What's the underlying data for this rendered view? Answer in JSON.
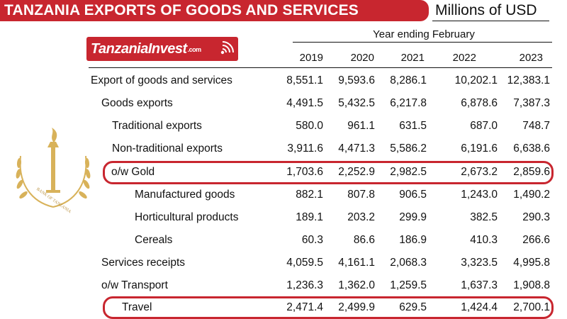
{
  "header": {
    "title": "TANZANIA EXPORTS OF GOODS AND SERVICES",
    "units": "Millions of USD"
  },
  "logo": {
    "text": "TanzaniaInvest",
    "suffix": ".com"
  },
  "seal": {
    "text": "BANK OF TANZANIA",
    "color": "#d8b25a"
  },
  "table": {
    "period_label": "Year ending February",
    "years": [
      "2019",
      "2020",
      "2021",
      "2022",
      "2023"
    ],
    "rows": [
      {
        "label": "Export of goods and services",
        "values": [
          "8,551.1",
          "9,593.6",
          "8,286.1",
          "10,202.1",
          "12,383.1"
        ]
      },
      {
        "label": "Goods exports",
        "values": [
          "4,491.5",
          "5,432.5",
          "6,217.8",
          "6,878.6",
          "7,387.3"
        ]
      },
      {
        "label": "Traditional exports",
        "values": [
          "580.0",
          "961.1",
          "631.5",
          "687.0",
          "748.7"
        ]
      },
      {
        "label": "Non-traditional exports",
        "values": [
          "3,911.6",
          "4,471.3",
          "5,586.2",
          "6,191.6",
          "6,638.6"
        ]
      },
      {
        "label": "o/w  Gold",
        "values": [
          "1,703.6",
          "2,252.9",
          "2,982.5",
          "2,673.2",
          "2,859.6"
        ]
      },
      {
        "label": "Manufactured goods",
        "values": [
          "882.1",
          "807.8",
          "906.5",
          "1,243.0",
          "1,490.2"
        ]
      },
      {
        "label": "Horticultural products",
        "values": [
          "189.1",
          "203.2",
          "299.9",
          "382.5",
          "290.3"
        ]
      },
      {
        "label": "Cereals",
        "values": [
          "60.3",
          "86.6",
          "186.9",
          "410.3",
          "266.6"
        ]
      },
      {
        "label": "Services receipts",
        "values": [
          "4,059.5",
          "4,161.1",
          "2,068.3",
          "3,323.5",
          "4,995.8"
        ]
      },
      {
        "label": "o/w Transport",
        "values": [
          "1,236.3",
          "1,362.0",
          "1,259.5",
          "1,637.3",
          "1,908.8"
        ]
      },
      {
        "label": "Travel",
        "values": [
          "2,471.4",
          "2,499.9",
          "629.5",
          "1,424.4",
          "2,700.1"
        ]
      }
    ]
  },
  "colors": {
    "brand_red": "#c8262f",
    "text": "#111111",
    "seal_gold": "#d8b25a"
  }
}
